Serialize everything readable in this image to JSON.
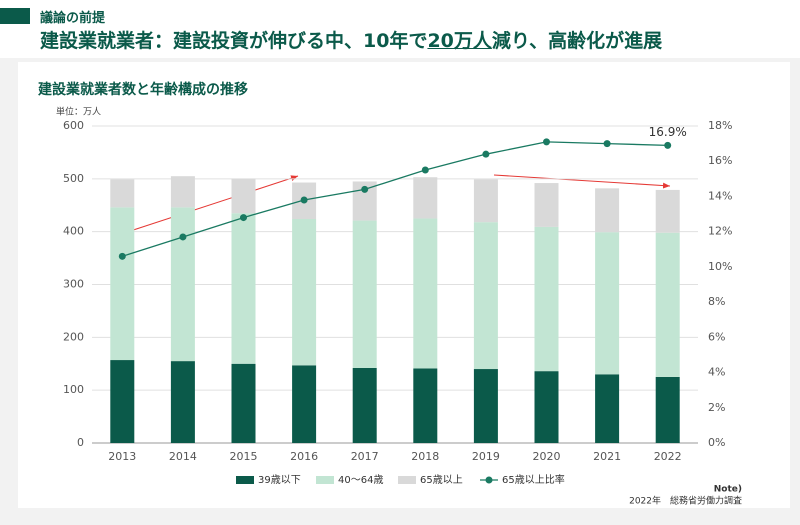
{
  "header": {
    "tag": "議論の前提",
    "title_parts": [
      "建設業就業者：建設投資が伸びる中、10年で",
      "20万人",
      "減り、高齢化が進展"
    ]
  },
  "chart_data": {
    "type": "bar",
    "stacked": true,
    "title": "建設業就業者数と年齢構成の推移",
    "y_label": "単位：万人",
    "note": "Note)",
    "source": "2022年　総務省労働力調査",
    "categories": [
      "2013",
      "2014",
      "2015",
      "2016",
      "2017",
      "2018",
      "2019",
      "2020",
      "2021",
      "2022"
    ],
    "series": [
      {
        "name": "39歳以下",
        "color": "#0b5a4a",
        "values": [
          157,
          155,
          150,
          147,
          142,
          141,
          140,
          136,
          130,
          125
        ]
      },
      {
        "name": "40～64歳",
        "color": "#c2e5d3",
        "values": [
          289,
          291,
          285,
          277,
          279,
          284,
          278,
          273,
          269,
          273
        ]
      },
      {
        "name": "65歳以上",
        "color": "#d9d9d9",
        "values": [
          53,
          59,
          65,
          69,
          74,
          78,
          81,
          83,
          83,
          81
        ]
      },
      {
        "name": "65歳以上比率",
        "type": "line",
        "axis": "y2",
        "color": "#1a7a62",
        "values": [
          10.6,
          11.7,
          12.8,
          13.8,
          14.4,
          15.5,
          16.4,
          17.1,
          17.0,
          16.9
        ],
        "value_labels": [
          null,
          null,
          null,
          null,
          null,
          null,
          null,
          null,
          null,
          "16.9%"
        ]
      }
    ],
    "ylim": [
      0,
      600
    ],
    "yticks": [
      0,
      100,
      200,
      300,
      400,
      500,
      600
    ],
    "y2lim": [
      0,
      18
    ],
    "y2ticks": [
      {
        "value": 0,
        "label": "0%"
      },
      {
        "value": 2,
        "label": "2%"
      },
      {
        "value": 4,
        "label": "4%"
      },
      {
        "value": 6,
        "label": "6%"
      },
      {
        "value": 8,
        "label": "8%"
      },
      {
        "value": 10,
        "label": "10%"
      },
      {
        "value": 12,
        "label": "12%"
      },
      {
        "value": 14,
        "label": "14%"
      },
      {
        "value": 16,
        "label": "16%"
      },
      {
        "value": 18,
        "label": "18%"
      }
    ],
    "grid": true,
    "legend": "bottom"
  }
}
